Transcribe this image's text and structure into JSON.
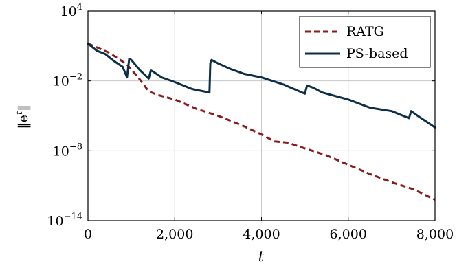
{
  "chart_data": {
    "type": "line",
    "xlabel": "t",
    "ylabel": "‖e",
    "ylabel_sup": "t",
    "ylabel_close": "‖",
    "xlim": [
      0,
      8000
    ],
    "ylim_log10": [
      -14,
      4
    ],
    "y_scale": "log",
    "grid": true,
    "legend_position": "top-right",
    "x_ticks": [
      0,
      2000,
      4000,
      6000,
      8000
    ],
    "x_tick_labels": [
      "0",
      "2,000",
      "4,000",
      "6,000",
      "8,000"
    ],
    "y_ticks_log10": [
      -14,
      -8,
      -2,
      4
    ],
    "y_tick_base": "10",
    "y_tick_exponents": [
      "−14",
      "−8",
      "−2",
      "4"
    ],
    "colors": {
      "RATG": "#8b1a1a",
      "PS-based": "#0d2e47"
    },
    "series": [
      {
        "name": "RATG",
        "style": "dashed",
        "points": [
          [
            0,
            1.2
          ],
          [
            500,
            0.4
          ],
          [
            900,
            -0.6
          ],
          [
            1200,
            -1.9
          ],
          [
            1400,
            -2.9
          ],
          [
            1600,
            -3.2
          ],
          [
            2000,
            -3.6
          ],
          [
            2500,
            -4.4
          ],
          [
            3000,
            -5.0
          ],
          [
            3600,
            -5.9
          ],
          [
            4000,
            -6.6
          ],
          [
            4300,
            -7.2
          ],
          [
            4600,
            -7.3
          ],
          [
            5000,
            -7.8
          ],
          [
            5500,
            -8.4
          ],
          [
            6000,
            -9.2
          ],
          [
            6500,
            -10.0
          ],
          [
            7000,
            -10.7
          ],
          [
            7500,
            -11.3
          ],
          [
            8000,
            -12.2
          ]
        ]
      },
      {
        "name": "PS-based",
        "style": "solid",
        "points": [
          [
            0,
            1.2
          ],
          [
            200,
            0.6
          ],
          [
            400,
            0.3
          ],
          [
            600,
            -0.3
          ],
          [
            800,
            -0.8
          ],
          [
            900,
            -1.7
          ],
          [
            950,
            -0.1
          ],
          [
            1000,
            -0.2
          ],
          [
            1200,
            -1.1
          ],
          [
            1400,
            -1.8
          ],
          [
            1450,
            -1.1
          ],
          [
            1500,
            -1.2
          ],
          [
            1700,
            -1.7
          ],
          [
            2000,
            -2.1
          ],
          [
            2400,
            -2.7
          ],
          [
            2800,
            -3.0
          ],
          [
            2820,
            -0.5
          ],
          [
            2850,
            -0.2
          ],
          [
            3000,
            -0.5
          ],
          [
            3300,
            -1.0
          ],
          [
            3600,
            -1.4
          ],
          [
            4000,
            -1.7
          ],
          [
            4500,
            -2.3
          ],
          [
            5000,
            -3.1
          ],
          [
            5050,
            -2.4
          ],
          [
            5200,
            -2.6
          ],
          [
            5400,
            -3.0
          ],
          [
            6000,
            -3.6
          ],
          [
            6500,
            -4.3
          ],
          [
            7000,
            -4.6
          ],
          [
            7400,
            -5.2
          ],
          [
            7450,
            -4.6
          ],
          [
            7600,
            -5.0
          ],
          [
            8000,
            -6.0
          ]
        ]
      }
    ]
  }
}
